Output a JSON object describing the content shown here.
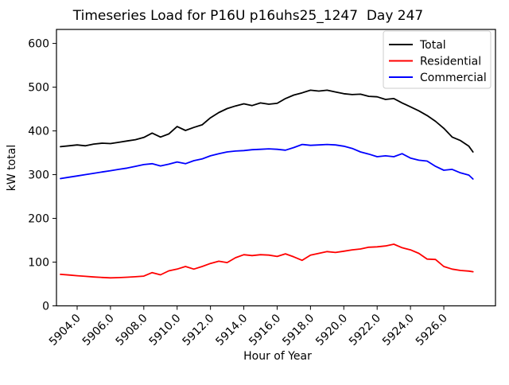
{
  "figure": {
    "background": "#ffffff",
    "spine_color": "#000000"
  },
  "chart_data": {
    "type": "line",
    "title": "Timeseries Load for P16U p16uhs25_1247  Day 247",
    "xlabel": "Hour of Year",
    "ylabel": "kW total",
    "grid": false,
    "legend_position": "upper right",
    "legend_border_color": "#cccccc",
    "xlim": [
      5902.76,
      5929.1
    ],
    "ylim": [
      0,
      632
    ],
    "x_ticks": [
      5904,
      5906,
      5908,
      5910,
      5912,
      5914,
      5916,
      5918,
      5920,
      5922,
      5924,
      5926
    ],
    "x_tick_labels": [
      "5904.0",
      "5906.0",
      "5908.0",
      "5910.0",
      "5912.0",
      "5914.0",
      "5916.0",
      "5918.0",
      "5920.0",
      "5922.0",
      "5924.0",
      "5926.0"
    ],
    "x_tick_rotation": 45,
    "y_ticks": [
      0,
      100,
      200,
      300,
      400,
      500,
      600
    ],
    "y_tick_labels": [
      "0",
      "100",
      "200",
      "300",
      "400",
      "500",
      "600"
    ],
    "x": [
      5903,
      5903.5,
      5904,
      5904.5,
      5905,
      5905.5,
      5906,
      5906.5,
      5907,
      5907.5,
      5908,
      5908.5,
      5909,
      5909.5,
      5910,
      5910.5,
      5911,
      5911.5,
      5912,
      5912.5,
      5913,
      5913.5,
      5914,
      5914.5,
      5915,
      5915.5,
      5916,
      5916.5,
      5917,
      5917.5,
      5918,
      5918.5,
      5919,
      5919.5,
      5920,
      5920.5,
      5921,
      5921.5,
      5922,
      5922.5,
      5923,
      5923.5,
      5924,
      5924.5,
      5925,
      5925.5,
      5926,
      5926.5,
      5927,
      5927.5,
      5927.75
    ],
    "series": [
      {
        "name": "Total",
        "color": "#000000",
        "values": [
          364,
          366,
          368,
          366,
          370,
          372,
          371,
          374,
          377,
          380,
          385,
          395,
          386,
          393,
          410,
          401,
          408,
          414,
          430,
          442,
          451,
          457,
          462,
          458,
          464,
          461,
          463,
          474,
          482,
          487,
          493,
          491,
          493,
          489,
          485,
          483,
          484,
          479,
          478,
          472,
          474,
          464,
          455,
          446,
          435,
          422,
          406,
          386,
          378,
          365,
          352
        ]
      },
      {
        "name": "Residential",
        "color": "#ff0000",
        "values": [
          72,
          70.5,
          69,
          67.5,
          66,
          65,
          64,
          64.5,
          65.5,
          66.5,
          68,
          76,
          71,
          80,
          84,
          90,
          84,
          90,
          97,
          102,
          99,
          110,
          117,
          115,
          117,
          116,
          113,
          119,
          112,
          104,
          116,
          120,
          124,
          122,
          125,
          128,
          130,
          134,
          135,
          137,
          141,
          133,
          128,
          120,
          107,
          106,
          90,
          84,
          81,
          79.5,
          78
        ]
      },
      {
        "name": "Commercial",
        "color": "#0000ff",
        "values": [
          291,
          294,
          297,
          300,
          303,
          306,
          309,
          312,
          315,
          319,
          323,
          325,
          320,
          324,
          329,
          325,
          332,
          336,
          343,
          348,
          352,
          354,
          355,
          357,
          358,
          359,
          358,
          356,
          362,
          369,
          367,
          368,
          369,
          368,
          365,
          360,
          352,
          347,
          341,
          343,
          341,
          348,
          338,
          333,
          331,
          319,
          310,
          312,
          304,
          299,
          290
        ]
      }
    ]
  }
}
